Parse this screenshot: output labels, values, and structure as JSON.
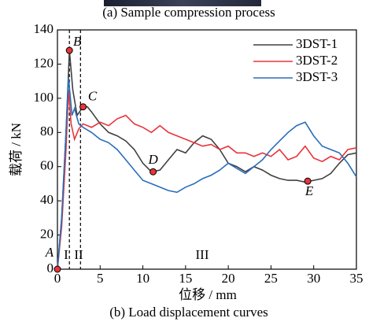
{
  "caption_top": "(a) Sample compression process",
  "chart_data": {
    "type": "line",
    "xlabel": "位移 / mm",
    "ylabel": "载荷 / kN",
    "caption": "(b) Load displacement curves",
    "xlim": [
      0,
      35
    ],
    "ylim": [
      0,
      140
    ],
    "xticks": [
      0,
      5,
      10,
      15,
      20,
      25,
      30,
      35
    ],
    "yticks": [
      0,
      20,
      40,
      60,
      80,
      100,
      120,
      140
    ],
    "legend": "upper right",
    "series": [
      {
        "name": "3DST-1",
        "color": "#404040",
        "x": [
          0,
          0.5,
          1,
          1.4,
          1.8,
          2.3,
          3,
          3.5,
          4,
          5,
          6,
          7,
          8,
          9,
          10,
          11,
          12,
          13,
          14,
          15,
          16,
          17,
          18,
          19,
          20,
          21,
          22,
          23,
          24,
          25,
          26,
          27,
          28,
          29,
          30,
          31,
          32,
          33,
          34,
          35
        ],
        "values": [
          0,
          30,
          80,
          128,
          105,
          90,
          95,
          95,
          92,
          85,
          80,
          78,
          75,
          70,
          62,
          57,
          58,
          64,
          70,
          68,
          74,
          78,
          76,
          70,
          62,
          60,
          57,
          60,
          58,
          55,
          53,
          52,
          52,
          51,
          52,
          53,
          56,
          62,
          67,
          68
        ]
      },
      {
        "name": "3DST-2",
        "color": "#e8343a",
        "x": [
          0,
          0.5,
          1,
          1.3,
          1.6,
          2,
          2.5,
          3,
          4,
          5,
          6,
          7,
          8,
          9,
          10,
          11,
          12,
          13,
          14,
          15,
          16,
          17,
          18,
          19,
          20,
          21,
          22,
          23,
          24,
          25,
          26,
          27,
          28,
          29,
          30,
          31,
          32,
          33,
          34,
          35
        ],
        "values": [
          0,
          25,
          70,
          105,
          85,
          76,
          82,
          85,
          83,
          86,
          84,
          88,
          90,
          85,
          83,
          80,
          84,
          80,
          78,
          76,
          74,
          72,
          73,
          70,
          72,
          68,
          68,
          66,
          68,
          66,
          70,
          64,
          66,
          72,
          65,
          63,
          66,
          64,
          70,
          71
        ]
      },
      {
        "name": "3DST-3",
        "color": "#2a6ebb",
        "x": [
          0,
          0.5,
          1,
          1.3,
          1.7,
          2,
          2.5,
          3,
          4,
          5,
          6,
          7,
          8,
          9,
          10,
          11,
          12,
          13,
          14,
          15,
          16,
          17,
          18,
          19,
          20,
          21,
          22,
          23,
          24,
          25,
          26,
          27,
          28,
          29,
          30,
          31,
          32,
          33,
          34,
          35
        ],
        "values": [
          0,
          30,
          80,
          112,
          90,
          94,
          85,
          83,
          80,
          76,
          74,
          70,
          64,
          58,
          52,
          50,
          48,
          46,
          45,
          48,
          50,
          53,
          55,
          58,
          62,
          59,
          56,
          60,
          64,
          70,
          75,
          80,
          84,
          86,
          78,
          72,
          70,
          68,
          62,
          54
        ]
      }
    ],
    "annotations": [
      {
        "label": "A",
        "x": 0,
        "y": 0
      },
      {
        "label": "B",
        "x": 1.4,
        "y": 128
      },
      {
        "label": "C",
        "x": 3,
        "y": 95
      },
      {
        "label": "D",
        "x": 11.2,
        "y": 57
      },
      {
        "label": "E",
        "x": 29.3,
        "y": 51.5
      }
    ],
    "dividers": [
      1.4,
      2.7
    ],
    "regions": [
      "I",
      "II",
      "III"
    ]
  }
}
